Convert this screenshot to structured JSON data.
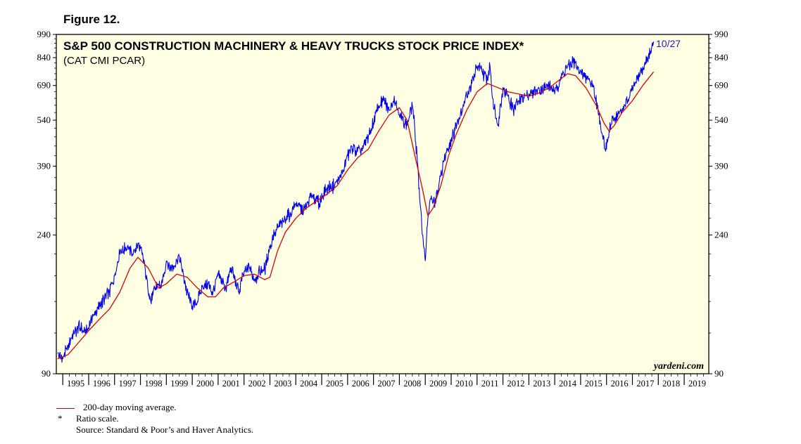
{
  "figure_label": "Figure 12.",
  "notes": {
    "ma_legend": "200-day moving average.",
    "star": "*",
    "ratio": "Ratio scale.",
    "source": "Source: Standard & Poor’s and Haver Analytics."
  },
  "colors": {
    "plot_bg": "#ffffe4",
    "price": "#0000ee",
    "moving_average": "#e00000",
    "annotation": "#1c1ccc"
  },
  "chart_data": {
    "type": "line",
    "title": "S&P 500 CONSTRUCTION MACHINERY & HEAVY TRUCKS STOCK PRICE INDEX*",
    "subtitle": "(CAT CMI PCAR)",
    "watermark": "yardeni.com",
    "scale": "log",
    "ylim": [
      90,
      990
    ],
    "xlim": [
      1994.75,
      2019.95
    ],
    "y_ticks": [
      "90",
      "240",
      "390",
      "540",
      "690",
      "840",
      "990"
    ],
    "x_ticks": [
      "1995",
      "1996",
      "1997",
      "1998",
      "1999",
      "2000",
      "2001",
      "2002",
      "2003",
      "2004",
      "2005",
      "2006",
      "2007",
      "2008",
      "2009",
      "2010",
      "2011",
      "2012",
      "2013",
      "2014",
      "2015",
      "2016",
      "2017",
      "2018",
      "2019"
    ],
    "end_label": "10/27",
    "grid": false,
    "series": [
      {
        "name": "",
        "color": "#0000ee",
        "x": [
          1994.8,
          1995.0,
          1995.3,
          1995.6,
          1995.9,
          1996.2,
          1996.5,
          1996.8,
          1997.0,
          1997.2,
          1997.5,
          1997.7,
          1997.9,
          1998.1,
          1998.4,
          1998.65,
          1998.8,
          1999.0,
          1999.2,
          1999.5,
          1999.8,
          2000.0,
          2000.2,
          2000.4,
          2000.6,
          2000.8,
          2001.0,
          2001.3,
          2001.5,
          2001.8,
          2002.0,
          2002.2,
          2002.4,
          2002.6,
          2002.8,
          2003.0,
          2003.2,
          2003.5,
          2003.8,
          2004.0,
          2004.3,
          2004.6,
          2004.9,
          2005.2,
          2005.5,
          2005.8,
          2006.0,
          2006.2,
          2006.5,
          2006.8,
          2007.0,
          2007.2,
          2007.4,
          2007.6,
          2007.8,
          2008.0,
          2008.3,
          2008.5,
          2008.6,
          2008.7,
          2008.8,
          2008.9,
          2009.0,
          2009.1,
          2009.2,
          2009.4,
          2009.6,
          2009.8,
          2010.0,
          2010.3,
          2010.6,
          2010.8,
          2011.0,
          2011.2,
          2011.4,
          2011.5,
          2011.6,
          2011.8,
          2012.0,
          2012.2,
          2012.4,
          2012.6,
          2012.8,
          2013.0,
          2013.2,
          2013.5,
          2013.8,
          2014.0,
          2014.2,
          2014.5,
          2014.7,
          2014.9,
          2015.1,
          2015.3,
          2015.5,
          2015.7,
          2015.85,
          2016.0,
          2016.1,
          2016.3,
          2016.6,
          2016.9,
          2017.1,
          2017.3,
          2017.5,
          2017.7,
          2017.82
        ],
        "y": [
          104,
          100,
          114,
          126,
          120,
          137,
          148,
          160,
          180,
          212,
          222,
          210,
          226,
          205,
          150,
          170,
          165,
          200,
          190,
          205,
          160,
          145,
          150,
          168,
          170,
          160,
          180,
          165,
          190,
          160,
          185,
          190,
          175,
          185,
          188,
          220,
          245,
          265,
          280,
          300,
          285,
          320,
          300,
          335,
          340,
          370,
          420,
          440,
          430,
          480,
          530,
          600,
          620,
          580,
          640,
          560,
          520,
          600,
          500,
          400,
          300,
          240,
          200,
          270,
          310,
          300,
          370,
          430,
          470,
          550,
          640,
          700,
          790,
          760,
          720,
          790,
          630,
          520,
          680,
          640,
          580,
          620,
          640,
          650,
          660,
          670,
          690,
          650,
          720,
          790,
          810,
          780,
          740,
          720,
          690,
          560,
          480,
          440,
          500,
          550,
          580,
          640,
          700,
          760,
          800,
          880,
          940
        ]
      },
      {
        "name": "200-day moving average.",
        "color": "#e00000",
        "x": [
          1994.8,
          1995.2,
          1995.6,
          1996.0,
          1996.4,
          1996.8,
          1997.2,
          1997.6,
          1997.9,
          1998.3,
          1998.7,
          1999.0,
          1999.4,
          1999.8,
          2000.2,
          2000.6,
          2000.9,
          2001.2,
          2001.6,
          2002.0,
          2002.4,
          2002.8,
          2003.0,
          2003.3,
          2003.6,
          2004.0,
          2004.4,
          2004.8,
          2005.2,
          2005.6,
          2006.0,
          2006.4,
          2006.8,
          2007.2,
          2007.6,
          2008.0,
          2008.3,
          2008.6,
          2008.9,
          2009.1,
          2009.3,
          2009.6,
          2009.9,
          2010.2,
          2010.6,
          2011.0,
          2011.4,
          2011.8,
          2012.2,
          2012.6,
          2013.0,
          2013.4,
          2013.8,
          2014.2,
          2014.5,
          2014.8,
          2015.2,
          2015.6,
          2015.9,
          2016.1,
          2016.3,
          2016.6,
          2017.0,
          2017.4,
          2017.82
        ],
        "y": [
          100,
          103,
          112,
          122,
          132,
          142,
          160,
          190,
          205,
          190,
          165,
          170,
          182,
          178,
          165,
          155,
          155,
          165,
          172,
          180,
          182,
          175,
          178,
          215,
          245,
          270,
          290,
          305,
          320,
          340,
          380,
          415,
          440,
          500,
          560,
          590,
          540,
          420,
          330,
          275,
          290,
          340,
          420,
          490,
          580,
          660,
          700,
          680,
          660,
          650,
          640,
          655,
          680,
          720,
          750,
          740,
          680,
          600,
          530,
          500,
          520,
          570,
          620,
          690,
          760
        ]
      }
    ]
  }
}
